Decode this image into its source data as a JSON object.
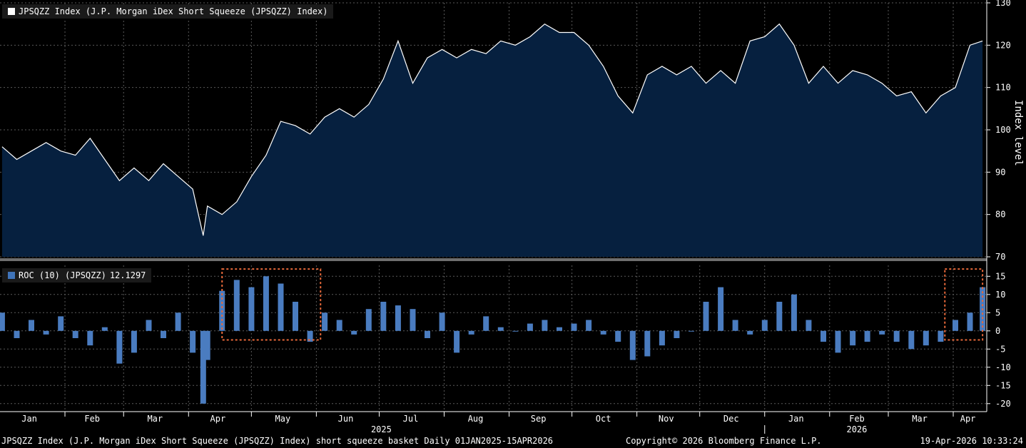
{
  "top_legend": {
    "label": "JPSQZZ Index (J.P. Morgan iDex Short Squeeze (JPSQZZ) Index)",
    "color": "#ffffff"
  },
  "bottom_legend": {
    "label": "ROC (10) (JPSQZZ)",
    "value": "12.1297",
    "color": "#3f73b8"
  },
  "footer": {
    "left": "JPSQZZ Index (J.P. Morgan iDex Short Squeeze (JPSQZZ) Index) short squeeze basket Daily 01JAN2025-15APR2026",
    "center": "Copyright© 2026 Bloomberg Finance L.P.",
    "right": "19-Apr-2026 10:33:24"
  },
  "colors": {
    "background": "#000000",
    "area_fill": "#06203f",
    "line": "#ffffff",
    "bar": "#4a7cc0",
    "grid": "#5a5a5a",
    "highlight_box": "#e8693a"
  },
  "chart_data": [
    {
      "type": "area",
      "ylabel": "Index level",
      "ylim": [
        70,
        130
      ],
      "yticks": [
        70,
        80,
        90,
        100,
        110,
        120,
        130
      ],
      "grid": true,
      "legend_position": "top-left",
      "x": [
        "2025-01-02",
        "2025-01-09",
        "2025-01-16",
        "2025-01-23",
        "2025-01-30",
        "2025-02-06",
        "2025-02-13",
        "2025-02-20",
        "2025-02-27",
        "2025-03-06",
        "2025-03-13",
        "2025-03-20",
        "2025-03-27",
        "2025-04-03",
        "2025-04-08",
        "2025-04-10",
        "2025-04-17",
        "2025-04-24",
        "2025-05-01",
        "2025-05-08",
        "2025-05-15",
        "2025-05-22",
        "2025-05-29",
        "2025-06-05",
        "2025-06-12",
        "2025-06-19",
        "2025-06-26",
        "2025-07-03",
        "2025-07-10",
        "2025-07-17",
        "2025-07-24",
        "2025-07-31",
        "2025-08-07",
        "2025-08-14",
        "2025-08-21",
        "2025-08-28",
        "2025-09-04",
        "2025-09-11",
        "2025-09-18",
        "2025-09-25",
        "2025-10-02",
        "2025-10-09",
        "2025-10-16",
        "2025-10-23",
        "2025-10-30",
        "2025-11-06",
        "2025-11-13",
        "2025-11-20",
        "2025-11-27",
        "2025-12-04",
        "2025-12-11",
        "2025-12-18",
        "2025-12-25",
        "2026-01-01",
        "2026-01-08",
        "2026-01-15",
        "2026-01-22",
        "2026-01-29",
        "2026-02-05",
        "2026-02-12",
        "2026-02-19",
        "2026-02-26",
        "2026-03-05",
        "2026-03-12",
        "2026-03-19",
        "2026-03-26",
        "2026-04-02",
        "2026-04-09",
        "2026-04-15"
      ],
      "y": [
        96,
        93,
        95,
        97,
        95,
        94,
        98,
        93,
        88,
        91,
        88,
        92,
        89,
        86,
        75,
        82,
        80,
        83,
        89,
        94,
        102,
        101,
        99,
        103,
        105,
        103,
        106,
        112,
        121,
        111,
        117,
        119,
        117,
        119,
        118,
        121,
        120,
        122,
        125,
        123,
        123,
        120,
        115,
        108,
        104,
        113,
        115,
        113,
        115,
        111,
        114,
        111,
        121,
        122,
        125,
        120,
        111,
        115,
        111,
        114,
        113,
        111,
        108,
        109,
        104,
        108,
        110,
        120,
        121
      ]
    },
    {
      "type": "bar",
      "ylabel": "",
      "ylim": [
        -22,
        18
      ],
      "yticks": [
        -20,
        -15,
        -10,
        -5,
        0,
        5,
        10,
        15
      ],
      "grid": true,
      "legend_position": "top-left",
      "x": [
        "2025-01-02",
        "2025-01-09",
        "2025-01-16",
        "2025-01-23",
        "2025-01-30",
        "2025-02-06",
        "2025-02-13",
        "2025-02-20",
        "2025-02-27",
        "2025-03-06",
        "2025-03-13",
        "2025-03-20",
        "2025-03-27",
        "2025-04-03",
        "2025-04-08",
        "2025-04-10",
        "2025-04-17",
        "2025-04-24",
        "2025-05-01",
        "2025-05-08",
        "2025-05-15",
        "2025-05-22",
        "2025-05-29",
        "2025-06-05",
        "2025-06-12",
        "2025-06-19",
        "2025-06-26",
        "2025-07-03",
        "2025-07-10",
        "2025-07-17",
        "2025-07-24",
        "2025-07-31",
        "2025-08-07",
        "2025-08-14",
        "2025-08-21",
        "2025-08-28",
        "2025-09-04",
        "2025-09-11",
        "2025-09-18",
        "2025-09-25",
        "2025-10-02",
        "2025-10-09",
        "2025-10-16",
        "2025-10-23",
        "2025-10-30",
        "2025-11-06",
        "2025-11-13",
        "2025-11-20",
        "2025-11-27",
        "2025-12-04",
        "2025-12-11",
        "2025-12-18",
        "2025-12-25",
        "2026-01-01",
        "2026-01-08",
        "2026-01-15",
        "2026-01-22",
        "2026-01-29",
        "2026-02-05",
        "2026-02-12",
        "2026-02-19",
        "2026-02-26",
        "2026-03-05",
        "2026-03-12",
        "2026-03-19",
        "2026-03-26",
        "2026-04-02",
        "2026-04-09",
        "2026-04-15"
      ],
      "y": [
        5,
        -2,
        3,
        -1,
        4,
        -2,
        -4,
        1,
        -9,
        -6,
        3,
        -2,
        5,
        -6,
        -20,
        -8,
        11,
        14,
        12,
        15,
        13,
        8,
        -3,
        5,
        3,
        -1,
        6,
        8,
        7,
        6,
        -2,
        5,
        -6,
        -1,
        4,
        1,
        0,
        2,
        3,
        1,
        2,
        3,
        -1,
        -3,
        -8,
        -7,
        -4,
        -2,
        0,
        8,
        12,
        3,
        -1,
        3,
        8,
        10,
        3,
        -3,
        -6,
        -4,
        -3,
        -1,
        -3,
        -5,
        -4,
        -3,
        3,
        5,
        12
      ]
    },
    {
      "type": "axis",
      "tick_labels": [
        "Jan",
        "Feb",
        "Mar",
        "Apr",
        "May",
        "Jun",
        "Jul",
        "Aug",
        "Sep",
        "Oct",
        "Nov",
        "Dec",
        "Jan",
        "Feb",
        "Mar",
        "Apr"
      ],
      "tick_dates": [
        "2025-01-15",
        "2025-02-14",
        "2025-03-16",
        "2025-04-15",
        "2025-05-16",
        "2025-06-15",
        "2025-07-16",
        "2025-08-16",
        "2025-09-15",
        "2025-10-16",
        "2025-11-15",
        "2025-12-16",
        "2026-01-16",
        "2026-02-14",
        "2026-03-16",
        "2026-04-08"
      ],
      "year_labels": [
        "2025",
        "2026"
      ],
      "year_dates": [
        "2025-07-02",
        "2026-02-14"
      ]
    }
  ],
  "highlights": [
    {
      "from": "2025-04-17",
      "to": "2025-06-03",
      "ylim": [
        -2.5,
        17
      ]
    },
    {
      "from": "2026-03-28",
      "to": "2026-04-15",
      "ylim": [
        -2.5,
        17
      ]
    }
  ]
}
